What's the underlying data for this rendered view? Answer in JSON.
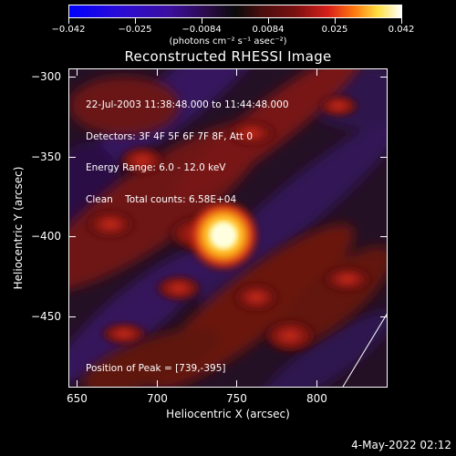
{
  "colorbar": {
    "tick_labels": [
      "−0.042",
      "−0.025",
      "−0.0084",
      "0.0084",
      "0.025",
      "0.042"
    ],
    "units": "(photons cm⁻² s⁻¹ asec⁻²)"
  },
  "title": "Reconstructed RHESSI Image",
  "info": {
    "line1": "22-Jul-2003 11:38:48.000 to 11:44:48.000",
    "line2": "Detectors: 3F 4F 5F 6F 7F 8F, Att 0",
    "line3": "Energy Range: 6.0 - 12.0 keV",
    "line4": "Clean    Total counts: 6.58E+04"
  },
  "peak_text": "Position of Peak = [739,-395]",
  "chart_data": {
    "type": "heatmap",
    "title": "Reconstructed RHESSI Image",
    "xlabel": "Heliocentric X (arcsec)",
    "ylabel": "Heliocentric Y (arcsec)",
    "x_ticks": [
      "650",
      "700",
      "750",
      "800"
    ],
    "y_ticks": [
      "−300",
      "−350",
      "−400",
      "−450"
    ],
    "xlim": [
      640,
      840
    ],
    "ylim": [
      -485,
      -285
    ],
    "colorbar_range": [
      -0.042,
      0.042
    ],
    "peak": [
      739,
      -395
    ],
    "grid": false
  },
  "footer": "4-May-2022 02:12"
}
